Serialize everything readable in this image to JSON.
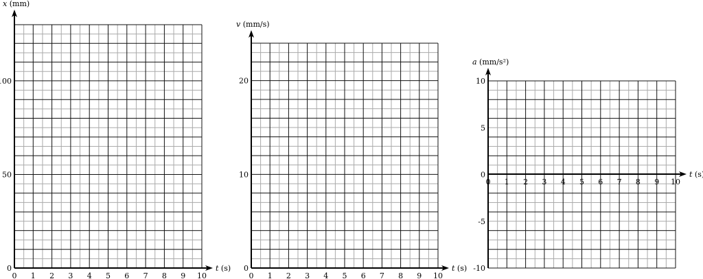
{
  "chart_data": [
    {
      "type": "line",
      "ylabel_var": "x",
      "ylabel_unit": "(mm)",
      "xlabel_var": "t",
      "xlabel_unit": "(s)",
      "xlim": [
        0,
        10
      ],
      "ylim": [
        0,
        130
      ],
      "xticks": [
        0,
        1,
        2,
        3,
        4,
        5,
        6,
        7,
        8,
        9,
        10
      ],
      "yticks": [
        0,
        50,
        100
      ],
      "x_major": 1,
      "x_minor": 0.5,
      "y_major": 10,
      "y_minor": 5,
      "grid": true,
      "series": []
    },
    {
      "type": "line",
      "ylabel_var": "v",
      "ylabel_unit": "(mm/s)",
      "xlabel_var": "t",
      "xlabel_unit": "(s)",
      "xlim": [
        0,
        10
      ],
      "ylim": [
        0,
        24
      ],
      "xticks": [
        0,
        1,
        2,
        3,
        4,
        5,
        6,
        7,
        8,
        9,
        10
      ],
      "yticks": [
        0,
        10,
        20
      ],
      "x_major": 1,
      "x_minor": 0.5,
      "y_major": 2,
      "y_minor": 1,
      "grid": true,
      "series": []
    },
    {
      "type": "line",
      "ylabel_var": "a",
      "ylabel_unit": "(mm/s²)",
      "xlabel_var": "t",
      "xlabel_unit": "(s)",
      "xlim": [
        0,
        10
      ],
      "ylim": [
        -10,
        10
      ],
      "xticks": [
        0,
        1,
        2,
        3,
        4,
        5,
        6,
        7,
        8,
        9,
        10
      ],
      "yticks": [
        -10,
        -5,
        0,
        5,
        10
      ],
      "x_major": 1,
      "x_minor": 0.5,
      "y_major": 2,
      "y_minor": 1,
      "grid": true,
      "series": []
    }
  ]
}
